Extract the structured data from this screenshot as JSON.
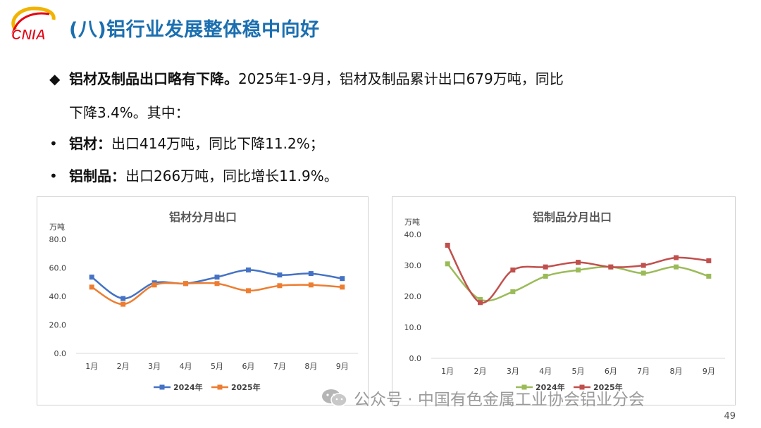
{
  "header": {
    "logo_text": "CNIA",
    "title": "(八)铝行业发展整体稳中向好"
  },
  "bullets": {
    "main_bold": "铝材及制品出口略有下降。",
    "main_text_1": "2025年1-9月，铝材及制品累计出口679万吨，同比",
    "main_text_2": "下降3.4%。其中：",
    "sub1_bold": "铝材：",
    "sub1_text": "出口414万吨，同比下降11.2%；",
    "sub2_bold": "铝制品：",
    "sub2_text": "出口266万吨，同比增长11.9%。",
    "diamond": "◆",
    "dot": "•"
  },
  "chart_data": [
    {
      "type": "line",
      "title": "铝材分月出口",
      "unit_label": "万吨",
      "categories": [
        "1月",
        "2月",
        "3月",
        "4月",
        "5月",
        "6月",
        "7月",
        "8月",
        "9月"
      ],
      "yticks": [
        "0.0",
        "20.0",
        "40.0",
        "60.0",
        "80.0"
      ],
      "ylim": [
        0,
        80
      ],
      "series": [
        {
          "name": "2024年",
          "color": "#4472c4",
          "marker": "square",
          "values": [
            53.5,
            38.5,
            49.5,
            49.0,
            53.5,
            58.5,
            55.0,
            56.0,
            52.5
          ]
        },
        {
          "name": "2025年",
          "color": "#ed7d31",
          "marker": "square",
          "values": [
            46.5,
            34.5,
            48.0,
            49.0,
            49.0,
            44.0,
            47.5,
            48.0,
            46.5
          ]
        }
      ],
      "legend": "bottom"
    },
    {
      "type": "line",
      "title": "铝制品分月出口",
      "unit_label": "万吨",
      "categories": [
        "1月",
        "2月",
        "3月",
        "4月",
        "5月",
        "6月",
        "7月",
        "8月",
        "9月"
      ],
      "yticks": [
        "0.0",
        "10.0",
        "20.0",
        "30.0",
        "40.0"
      ],
      "ylim": [
        0,
        40
      ],
      "series": [
        {
          "name": "2024年",
          "color": "#9bbb59",
          "marker": "square",
          "values": [
            30.5,
            19.0,
            21.5,
            26.5,
            28.5,
            29.5,
            27.5,
            29.5,
            26.5
          ]
        },
        {
          "name": "2025年",
          "color": "#c0504d",
          "marker": "square",
          "values": [
            36.5,
            18.0,
            28.5,
            29.5,
            31.0,
            29.5,
            30.0,
            32.5,
            31.5
          ]
        }
      ],
      "legend": "bottom"
    }
  ],
  "watermark": {
    "text": "公众号 · 中国有色金属工业协会铝业分会"
  },
  "footer": {
    "page_number": "49"
  }
}
